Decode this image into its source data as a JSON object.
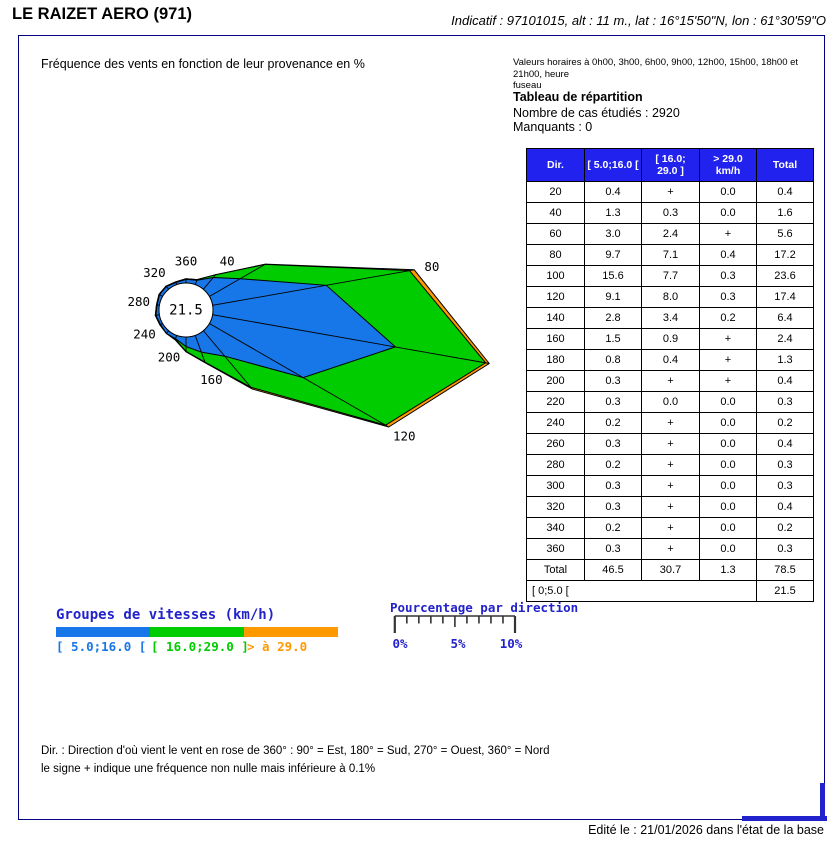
{
  "header": {
    "title": "LE RAIZET AERO (971)",
    "station_info": "Indicatif : 97101015, alt : 11 m., lat : 16°15'50\"N, lon : 61°30'59\"O"
  },
  "panel": {
    "subtitle": "Fréquence des vents en fonction de leur provenance en %",
    "hours_note": "Valeurs horaires à 0h00, 3h00, 6h00, 9h00, 12h00, 15h00, 18h00 et 21h00, heure\nfuseau",
    "table_title": "Tableau de répartition",
    "cases_line": "Nombre de cas étudiés : 2920",
    "missing_line": "Manquants : 0"
  },
  "table": {
    "headers": [
      "Dir.",
      "[ 5.0;16.0 [",
      "[ 16.0;\n29.0 ]",
      "> 29.0\nkm/h",
      "Total"
    ],
    "rows": [
      [
        "20",
        "0.4",
        "+",
        "0.0",
        "0.4"
      ],
      [
        "40",
        "1.3",
        "0.3",
        "0.0",
        "1.6"
      ],
      [
        "60",
        "3.0",
        "2.4",
        "+",
        "5.6"
      ],
      [
        "80",
        "9.7",
        "7.1",
        "0.4",
        "17.2"
      ],
      [
        "100",
        "15.6",
        "7.7",
        "0.3",
        "23.6"
      ],
      [
        "120",
        "9.1",
        "8.0",
        "0.3",
        "17.4"
      ],
      [
        "140",
        "2.8",
        "3.4",
        "0.2",
        "6.4"
      ],
      [
        "160",
        "1.5",
        "0.9",
        "+",
        "2.4"
      ],
      [
        "180",
        "0.8",
        "0.4",
        "+",
        "1.3"
      ],
      [
        "200",
        "0.3",
        "+",
        "+",
        "0.4"
      ],
      [
        "220",
        "0.3",
        "0.0",
        "0.0",
        "0.3"
      ],
      [
        "240",
        "0.2",
        "+",
        "0.0",
        "0.2"
      ],
      [
        "260",
        "0.3",
        "+",
        "0.0",
        "0.4"
      ],
      [
        "280",
        "0.2",
        "+",
        "0.0",
        "0.3"
      ],
      [
        "300",
        "0.3",
        "+",
        "0.0",
        "0.3"
      ],
      [
        "320",
        "0.3",
        "+",
        "0.0",
        "0.4"
      ],
      [
        "340",
        "0.2",
        "+",
        "0.0",
        "0.2"
      ],
      [
        "360",
        "0.3",
        "+",
        "0.0",
        "0.3"
      ]
    ],
    "total_row": [
      "Total",
      "46.5",
      "30.7",
      "1.3",
      "78.5"
    ],
    "calm_row": {
      "label": "[ 0;5.0 [",
      "value": "21.5"
    }
  },
  "chart_data": {
    "type": "wind-rose",
    "title": "Fréquence des vents en fonction de leur provenance en %",
    "units": "%",
    "directions_deg": [
      20,
      40,
      60,
      80,
      100,
      120,
      140,
      160,
      180,
      200,
      220,
      240,
      260,
      280,
      300,
      320,
      340,
      360
    ],
    "series": [
      {
        "name": "[ 5.0;16.0 [",
        "color": "#1777e8",
        "values": [
          0.4,
          1.3,
          3.0,
          9.7,
          15.6,
          9.1,
          2.8,
          1.5,
          0.8,
          0.3,
          0.3,
          0.2,
          0.3,
          0.2,
          0.3,
          0.3,
          0.2,
          0.3
        ]
      },
      {
        "name": "[ 16.0;29.0 ]",
        "color": "#00cc00",
        "values": [
          "+",
          0.3,
          2.4,
          7.1,
          7.7,
          8.0,
          3.4,
          0.9,
          0.4,
          "+",
          0.0,
          "+",
          "+",
          "+",
          "+",
          "+",
          "+",
          "+"
        ]
      },
      {
        "name": "> 29.0 km/h",
        "color": "#ff9900",
        "values": [
          0.0,
          0.0,
          "+",
          0.4,
          0.3,
          0.3,
          0.2,
          "+",
          "+",
          "+",
          0.0,
          0.0,
          0.0,
          0.0,
          0.0,
          0.0,
          0.0,
          0.0
        ]
      }
    ],
    "totals": [
      0.4,
      1.6,
      5.6,
      17.2,
      23.6,
      17.4,
      6.4,
      2.4,
      1.3,
      0.4,
      0.3,
      0.2,
      0.4,
      0.3,
      0.3,
      0.4,
      0.2,
      0.3
    ],
    "calm_percent": "21.5",
    "labeled_directions": [
      40,
      80,
      120,
      160,
      200,
      240,
      280,
      320,
      360
    ],
    "axis_scale": {
      "label": "Pourcentage par direction",
      "tick_labels": [
        "0%",
        "5%",
        "10%"
      ],
      "max_percent": 10
    }
  },
  "legend": {
    "title": "Groupes de vitesses (km/h)",
    "labels": [
      "[ 5.0;16.0 [",
      "[ 16.0;29.0 ]",
      "> à 29.0"
    ]
  },
  "scale": {
    "title": "Pourcentage par direction",
    "ticks": [
      "0%",
      "5%",
      "10%"
    ]
  },
  "footer": {
    "note1": "Dir. : Direction d'où vient le vent en rose de 360° : 90° = Est, 180° = Sud, 270° = Ouest, 360° = Nord",
    "note2": "le signe + indique une fréquence non nulle mais inférieure à 0.1%",
    "edited": "Edité le : 21/01/2026 dans l'état de la base"
  },
  "colors": {
    "speed_low": "#1777e8",
    "speed_mid": "#00cc00",
    "speed_high": "#ff9900",
    "table_header_bg": "#2222ee",
    "accent_text": "#2222cc",
    "panel_border": "#000080",
    "corner_mark": "#2222cc"
  }
}
